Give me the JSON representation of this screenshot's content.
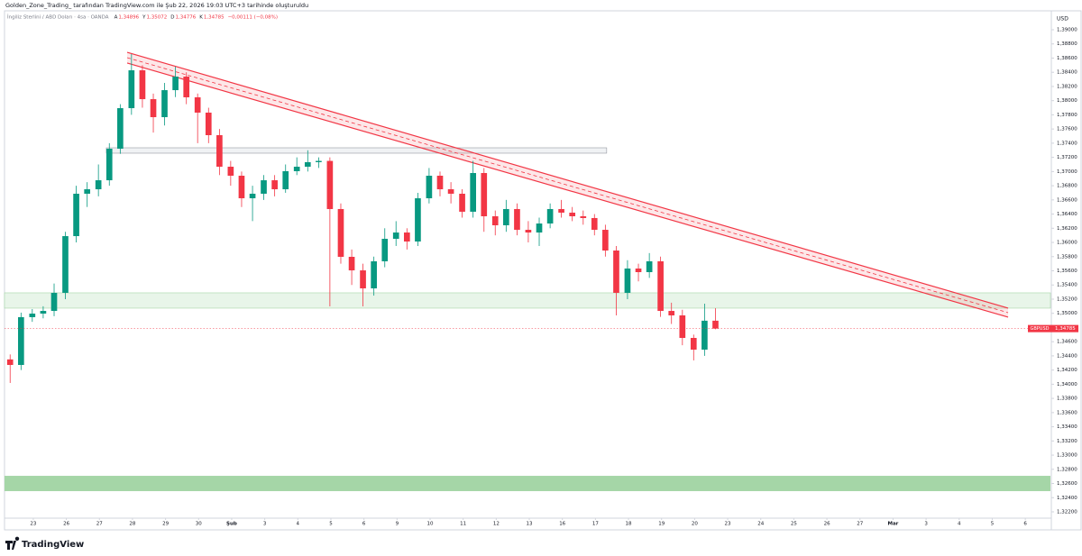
{
  "attribution": "Golden_Zone_Trading_ tarafından TradingView.com ile Şub 22, 2026 19:03 UTC+3 tarihinde oluşturuldu",
  "brand": "TradingView",
  "chart_data": {
    "type": "candlestick",
    "header": {
      "symbol": "İngiliz Sterlini / ABD Doları · 4sa · OANDA",
      "ohlc": [
        {
          "label": "A",
          "value": "1,34896"
        },
        {
          "label": "Y",
          "value": "1,35072"
        },
        {
          "label": "D",
          "value": "1,34776"
        },
        {
          "label": "K",
          "value": "1,34785"
        }
      ],
      "change": "−0,00111 (−0,08%)"
    },
    "currency": "USD",
    "symbol_tag": "GBPUSD",
    "last_price_label": "1,34785",
    "up_color": "#089981",
    "down_color": "#f23645",
    "xlim": [
      -0.87,
      30.76
    ],
    "ylim": [
      1.32111,
      1.39267
    ],
    "xticks": [
      {
        "value": 0,
        "label": "23"
      },
      {
        "value": 1,
        "label": "26"
      },
      {
        "value": 2,
        "label": "27"
      },
      {
        "value": 3,
        "label": "28"
      },
      {
        "value": 4,
        "label": "29"
      },
      {
        "value": 5,
        "label": "30"
      },
      {
        "value": 6,
        "label": "Şub"
      },
      {
        "value": 7,
        "label": "3"
      },
      {
        "value": 8,
        "label": "4"
      },
      {
        "value": 9,
        "label": "5"
      },
      {
        "value": 10,
        "label": "6"
      },
      {
        "value": 11,
        "label": "9"
      },
      {
        "value": 12,
        "label": "10"
      },
      {
        "value": 13,
        "label": "11"
      },
      {
        "value": 14,
        "label": "12"
      },
      {
        "value": 15,
        "label": "13"
      },
      {
        "value": 16,
        "label": "16"
      },
      {
        "value": 17,
        "label": "17"
      },
      {
        "value": 18,
        "label": "18"
      },
      {
        "value": 19,
        "label": "19"
      },
      {
        "value": 20,
        "label": "20"
      },
      {
        "value": 21,
        "label": "23"
      },
      {
        "value": 22,
        "label": "24"
      },
      {
        "value": 23,
        "label": "25"
      },
      {
        "value": 24,
        "label": "26"
      },
      {
        "value": 25,
        "label": "27"
      },
      {
        "value": 26,
        "label": "Mar"
      },
      {
        "value": 27,
        "label": "3"
      },
      {
        "value": 28,
        "label": "4"
      },
      {
        "value": 29,
        "label": "5"
      },
      {
        "value": 30,
        "label": "6"
      }
    ],
    "yticks": [
      {
        "value": 1.39,
        "label": "1,39000"
      },
      {
        "value": 1.388,
        "label": "1,38800"
      },
      {
        "value": 1.386,
        "label": "1,38600"
      },
      {
        "value": 1.384,
        "label": "1,38400"
      },
      {
        "value": 1.382,
        "label": "1,38200"
      },
      {
        "value": 1.38,
        "label": "1,38000"
      },
      {
        "value": 1.378,
        "label": "1,37800"
      },
      {
        "value": 1.376,
        "label": "1,37600"
      },
      {
        "value": 1.374,
        "label": "1,37400"
      },
      {
        "value": 1.372,
        "label": "1,37200"
      },
      {
        "value": 1.37,
        "label": "1,37000"
      },
      {
        "value": 1.368,
        "label": "1,36800"
      },
      {
        "value": 1.366,
        "label": "1,36600"
      },
      {
        "value": 1.364,
        "label": "1,36400"
      },
      {
        "value": 1.362,
        "label": "1,36200"
      },
      {
        "value": 1.36,
        "label": "1,36000"
      },
      {
        "value": 1.358,
        "label": "1,35800"
      },
      {
        "value": 1.356,
        "label": "1,35600"
      },
      {
        "value": 1.354,
        "label": "1,35400"
      },
      {
        "value": 1.352,
        "label": "1,35200"
      },
      {
        "value": 1.35,
        "label": "1,35000"
      },
      {
        "value": 1.346,
        "label": "1,34600"
      },
      {
        "value": 1.344,
        "label": "1,34400"
      },
      {
        "value": 1.342,
        "label": "1,34200"
      },
      {
        "value": 1.34,
        "label": "1,34000"
      },
      {
        "value": 1.338,
        "label": "1,33800"
      },
      {
        "value": 1.336,
        "label": "1,33600"
      },
      {
        "value": 1.334,
        "label": "1,33400"
      },
      {
        "value": 1.332,
        "label": "1,33200"
      },
      {
        "value": 1.33,
        "label": "1,33000"
      },
      {
        "value": 1.328,
        "label": "1,32800"
      },
      {
        "value": 1.326,
        "label": "1,32600"
      },
      {
        "value": 1.324,
        "label": "1,32400"
      },
      {
        "value": 1.322,
        "label": "1,32200"
      }
    ],
    "candles": {
      "x": [
        -0.7,
        -0.37,
        -0.03,
        0.3,
        0.63,
        0.97,
        1.3,
        1.63,
        1.97,
        2.3,
        2.63,
        2.97,
        3.3,
        3.63,
        3.97,
        4.3,
        4.63,
        4.97,
        5.3,
        5.63,
        5.97,
        6.3,
        6.63,
        6.97,
        7.3,
        7.63,
        7.97,
        8.3,
        8.63,
        8.97,
        9.3,
        9.63,
        9.97,
        10.3,
        10.63,
        10.97,
        11.3,
        11.63,
        11.97,
        12.3,
        12.63,
        12.97,
        13.3,
        13.63,
        13.97,
        14.3,
        14.63,
        14.97,
        15.3,
        15.63,
        15.97,
        16.3,
        16.63,
        16.97,
        17.3,
        17.63,
        17.97,
        18.3,
        18.63,
        18.97,
        19.3,
        19.63,
        19.97,
        20.3,
        20.63
      ],
      "open": [
        1.3435,
        1.34272,
        1.34946,
        1.34996,
        1.35034,
        1.35289,
        1.36089,
        1.36687,
        1.3675,
        1.36877,
        1.37322,
        1.37894,
        1.38428,
        1.38021,
        1.37767,
        1.38148,
        1.38339,
        1.38047,
        1.37831,
        1.37513,
        1.37068,
        1.36941,
        1.36623,
        1.36687,
        1.36877,
        1.3675,
        1.37005,
        1.37068,
        1.37132,
        1.3715,
        1.36471,
        1.35797,
        1.35606,
        1.35352,
        1.35734,
        1.36051,
        1.3614,
        1.36013,
        1.36623,
        1.36941,
        1.3675,
        1.36687,
        1.36433,
        1.36979,
        1.36369,
        1.36242,
        1.36471,
        1.36178,
        1.3614,
        1.36267,
        1.36471,
        1.3642,
        1.36369,
        1.36344,
        1.36178,
        1.35886,
        1.35289,
        1.35632,
        1.35581,
        1.35734,
        1.35034,
        1.34971,
        1.34653,
        1.34488,
        1.34896
      ],
      "high": [
        1.3442,
        1.3501,
        1.3506,
        1.351,
        1.3542,
        1.3615,
        1.368,
        1.3685,
        1.371,
        1.374,
        1.3795,
        1.38657,
        1.385,
        1.381,
        1.3825,
        1.3848,
        1.384,
        1.381,
        1.379,
        1.376,
        1.3715,
        1.37,
        1.368,
        1.3695,
        1.3695,
        1.371,
        1.372,
        1.373,
        1.372,
        1.372,
        1.3655,
        1.359,
        1.357,
        1.358,
        1.362,
        1.363,
        1.362,
        1.367,
        1.3705,
        1.37,
        1.3685,
        1.3675,
        1.3715,
        1.3705,
        1.3645,
        1.366,
        1.3655,
        1.363,
        1.3635,
        1.3655,
        1.366,
        1.365,
        1.3645,
        1.364,
        1.3625,
        1.3595,
        1.3575,
        1.357,
        1.3585,
        1.358,
        1.3515,
        1.3505,
        1.347,
        1.35136,
        1.35072
      ],
      "low": [
        1.34018,
        1.342,
        1.3488,
        1.3493,
        1.3496,
        1.352,
        1.36,
        1.365,
        1.3665,
        1.368,
        1.3725,
        1.378,
        1.379,
        1.3755,
        1.3765,
        1.3805,
        1.3795,
        1.374,
        1.374,
        1.3695,
        1.368,
        1.365,
        1.363,
        1.366,
        1.3665,
        1.367,
        1.3695,
        1.37,
        1.3705,
        1.35098,
        1.357,
        1.354,
        1.35098,
        1.3525,
        1.3565,
        1.3595,
        1.359,
        1.3595,
        1.3655,
        1.3665,
        1.3655,
        1.3635,
        1.3635,
        1.3615,
        1.361,
        1.3615,
        1.361,
        1.36,
        1.3595,
        1.362,
        1.3635,
        1.363,
        1.3625,
        1.361,
        1.358,
        1.34971,
        1.352,
        1.3545,
        1.355,
        1.3495,
        1.3485,
        1.3455,
        1.34336,
        1.344,
        1.34776
      ],
      "close": [
        1.34272,
        1.34946,
        1.34996,
        1.35034,
        1.35289,
        1.36089,
        1.36687,
        1.3675,
        1.36877,
        1.37322,
        1.37894,
        1.38428,
        1.38021,
        1.37767,
        1.38148,
        1.38339,
        1.38047,
        1.37831,
        1.37513,
        1.37068,
        1.36941,
        1.36623,
        1.36687,
        1.36877,
        1.3675,
        1.37005,
        1.37068,
        1.37132,
        1.3715,
        1.36471,
        1.35797,
        1.35606,
        1.35352,
        1.35734,
        1.36051,
        1.3614,
        1.36013,
        1.36623,
        1.36941,
        1.3675,
        1.36687,
        1.36433,
        1.36979,
        1.36369,
        1.36242,
        1.36471,
        1.36178,
        1.3614,
        1.36267,
        1.36471,
        1.3642,
        1.36369,
        1.36344,
        1.36178,
        1.35886,
        1.35289,
        1.35632,
        1.35581,
        1.35734,
        1.35034,
        1.34971,
        1.34653,
        1.34488,
        1.34896,
        1.34785
      ]
    },
    "zones": [
      {
        "x": [
          -0.87,
          30.76
        ],
        "y": [
          1.35073,
          1.35289
        ],
        "color": "#e8f5e9"
      },
      {
        "x": [
          -0.87,
          30.76
        ],
        "y": [
          1.32492,
          1.32708
        ],
        "color": "#a5d6a7"
      },
      {
        "x": [
          2.21,
          17.34
        ],
        "y": [
          1.37259,
          1.37335
        ],
        "color": "#f0f2f4"
      }
    ],
    "trend_channel": {
      "x": [
        2.84,
        29.48
      ],
      "upper": [
        1.38682,
        1.35073
      ],
      "lower": [
        1.3853,
        1.34946
      ],
      "color": "#f23645"
    }
  }
}
